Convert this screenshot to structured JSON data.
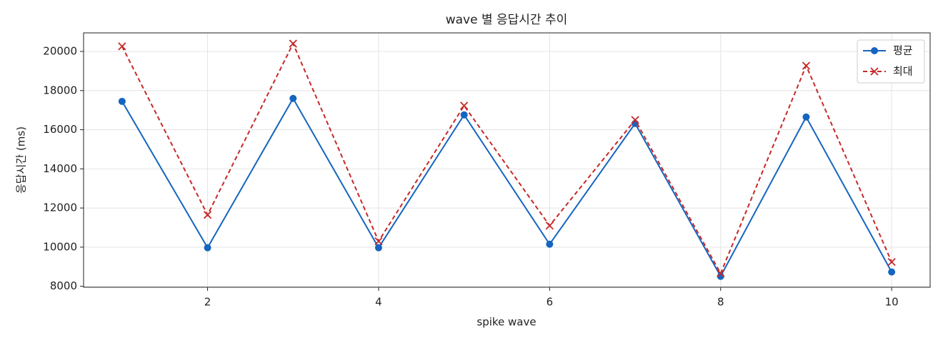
{
  "chart_data": {
    "type": "line",
    "title": "wave 별 응답시간 추이",
    "xlabel": "spike wave",
    "ylabel": "응답시간 (ms)",
    "x": [
      1,
      2,
      3,
      4,
      5,
      6,
      7,
      8,
      9,
      10
    ],
    "series": [
      {
        "name": "평균",
        "color": "#1565c0",
        "marker": "circle",
        "dash": false,
        "values": [
          17450,
          9970,
          17600,
          9970,
          16760,
          10150,
          16320,
          8510,
          16650,
          8730
        ]
      },
      {
        "name": "최대",
        "color": "#c62828",
        "marker": "x",
        "dash": true,
        "values": [
          20260,
          11650,
          20400,
          10300,
          17230,
          11100,
          16500,
          8660,
          19270,
          9240
        ]
      }
    ],
    "xlim": [
      0.55,
      10.45
    ],
    "xticks": [
      2,
      4,
      6,
      8,
      10
    ],
    "ylim": [
      7950,
      20950
    ],
    "yticks": [
      8000,
      10000,
      12000,
      14000,
      16000,
      18000,
      20000
    ],
    "grid": true,
    "legend": "upper right"
  }
}
